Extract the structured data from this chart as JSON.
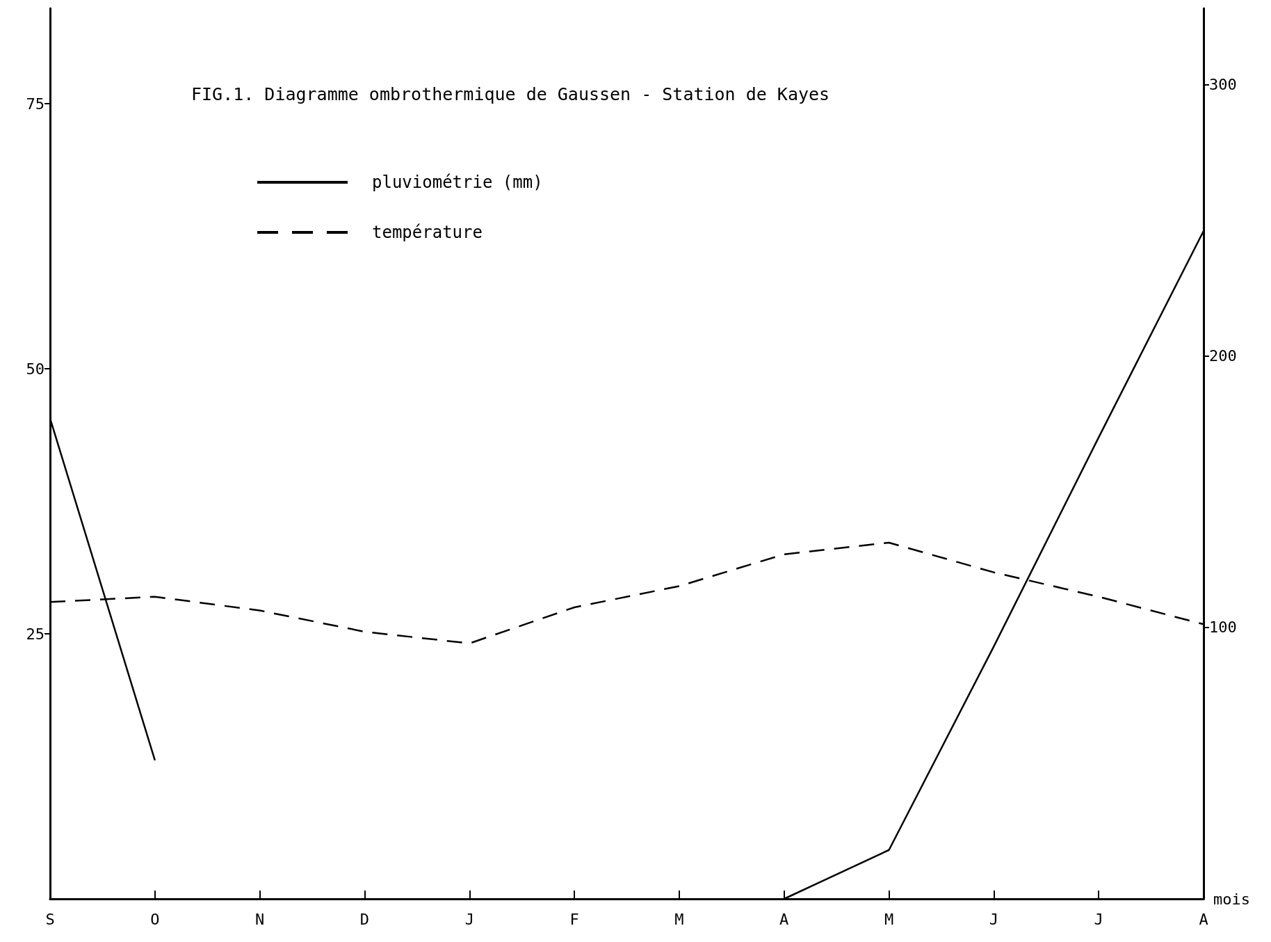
{
  "chart_data": {
    "type": "line",
    "title": "FIG.1. Diagramme ombrothermique de Gaussen - Station de Kayes",
    "xlabel": "mois",
    "categories": [
      "S",
      "O",
      "N",
      "D",
      "J",
      "F",
      "M",
      "A",
      "M",
      "J",
      "J",
      "A"
    ],
    "ylim": [
      0,
      84
    ],
    "yticks": [
      25,
      50,
      75
    ],
    "y2lim": [
      0,
      328
    ],
    "y2ticks": [
      100,
      200,
      300
    ],
    "series": [
      {
        "name": "pluviométrie (mm)",
        "color": "#000000",
        "line_style": "solid",
        "axis": "y2",
        "values": [
          177,
          51,
          null,
          null,
          null,
          null,
          null,
          0,
          18,
          93,
          170,
          246
        ]
      },
      {
        "name": "température",
        "color": "#000000",
        "line_style": "dashed",
        "values": [
          28,
          28.5,
          27.2,
          25.2,
          24.1,
          27.5,
          29.5,
          32.5,
          33.6,
          30.8,
          28.5,
          25.9
        ]
      }
    ],
    "legend": "top left",
    "marker": "none",
    "grid": false
  }
}
